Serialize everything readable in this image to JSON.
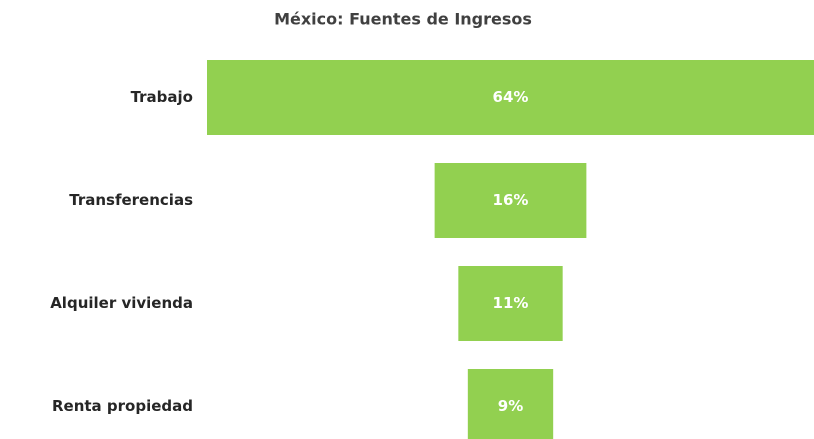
{
  "chart_data": {
    "type": "funnel",
    "title": "México: Fuentes de Ingresos",
    "categories": [
      "Trabajo",
      "Transferencias",
      "Alquiler vivienda",
      "Renta propiedad"
    ],
    "values": [
      64,
      16,
      11,
      9
    ],
    "value_labels": [
      "64%",
      "16%",
      "11%",
      "9%"
    ],
    "color": "#92d050"
  }
}
